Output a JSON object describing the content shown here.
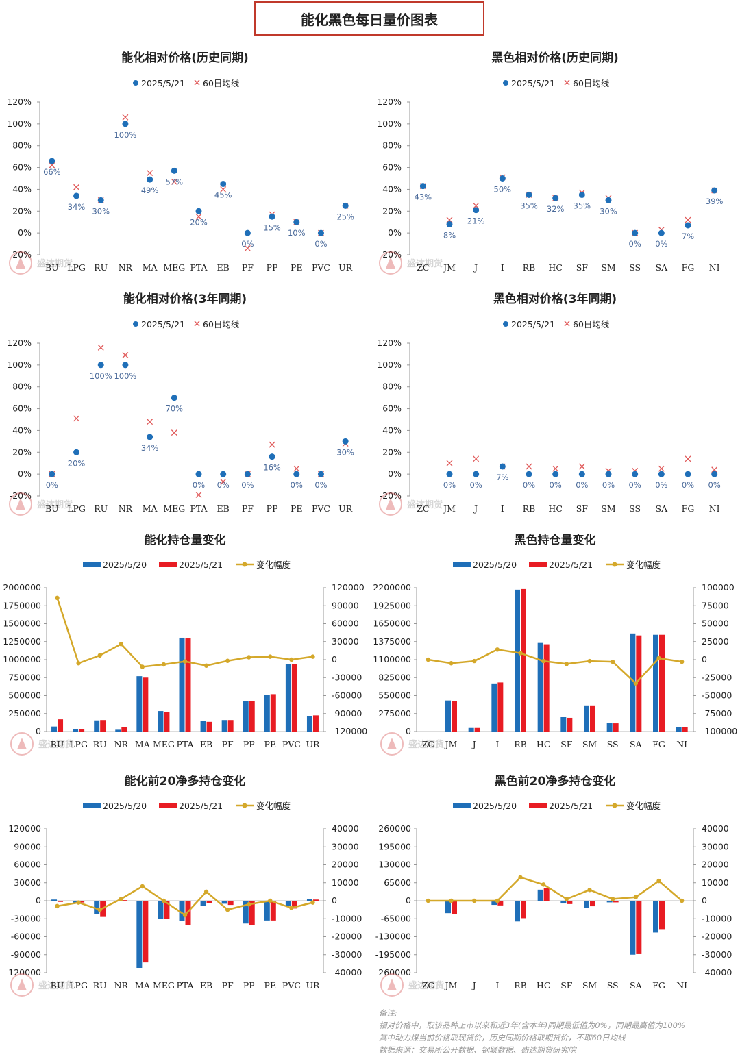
{
  "header": {
    "title": "能化黑色每日量价图表"
  },
  "legend_labels": {
    "dot": "2025/5/21",
    "cross": "60日均线",
    "bar1": "2025/5/20",
    "bar2": "2025/5/21",
    "line": "变化幅度"
  },
  "watermark": {
    "text": "盛达期货"
  },
  "colors": {
    "blue": "#1f6fb8",
    "red": "#e81c23",
    "gold": "#d4a82a",
    "cross": "#e05a5a",
    "label": "#4a6a9a"
  },
  "chart_data": [
    {
      "id": "chem-rel-hist",
      "type": "scatter",
      "title": "能化相对价格(历史同期)",
      "categories": [
        "BU",
        "LPG",
        "RU",
        "NR",
        "MA",
        "MEG",
        "PTA",
        "EB",
        "PF",
        "PP",
        "PE",
        "PVC",
        "UR"
      ],
      "series": [
        {
          "name": "2025/5/21",
          "values": [
            66,
            34,
            30,
            100,
            49,
            57,
            20,
            45,
            0,
            15,
            10,
            0,
            25
          ]
        },
        {
          "name": "60日均线",
          "values": [
            62,
            42,
            30,
            106,
            55,
            47,
            15,
            40,
            -14,
            17,
            10,
            0,
            25
          ]
        }
      ],
      "data_labels": [
        "66%",
        "34%",
        "30%",
        "100%",
        "49%",
        "57%",
        "20%",
        "45%",
        "0%",
        "15%",
        "10%",
        "0%",
        "25%"
      ],
      "y_ticks": [
        "120%",
        "100%",
        "80%",
        "60%",
        "40%",
        "20%",
        "0%",
        "-20%"
      ],
      "ylim": [
        -20,
        120
      ]
    },
    {
      "id": "black-rel-hist",
      "type": "scatter",
      "title": "黑色相对价格(历史同期)",
      "categories": [
        "ZC",
        "JM",
        "J",
        "I",
        "RB",
        "HC",
        "SF",
        "SM",
        "SS",
        "SA",
        "FG",
        "NI"
      ],
      "series": [
        {
          "name": "2025/5/21",
          "values": [
            43,
            8,
            21,
            50,
            35,
            32,
            35,
            30,
            0,
            0,
            7,
            39
          ]
        },
        {
          "name": "60日均线",
          "values": [
            43,
            12,
            25,
            51,
            35,
            32,
            37,
            32,
            0,
            3,
            12,
            39
          ]
        }
      ],
      "data_labels": [
        "43%",
        "8%",
        "21%",
        "50%",
        "35%",
        "32%",
        "35%",
        "30%",
        "0%",
        "0%",
        "7%",
        "39%"
      ],
      "y_ticks": [
        "120%",
        "100%",
        "80%",
        "60%",
        "40%",
        "20%",
        "0%",
        "-20%"
      ],
      "ylim": [
        -20,
        120
      ]
    },
    {
      "id": "chem-rel-3y",
      "type": "scatter",
      "title": "能化相对价格(3年同期)",
      "categories": [
        "BU",
        "LPG",
        "RU",
        "NR",
        "MA",
        "MEG",
        "PTA",
        "EB",
        "PF",
        "PP",
        "PE",
        "PVC",
        "UR"
      ],
      "series": [
        {
          "name": "2025/5/21",
          "values": [
            0,
            20,
            100,
            100,
            34,
            70,
            0,
            0,
            0,
            16,
            0,
            0,
            30
          ]
        },
        {
          "name": "60日均线",
          "values": [
            0,
            51,
            116,
            109,
            48,
            38,
            -19,
            -7,
            0,
            27,
            5,
            0,
            28
          ]
        }
      ],
      "data_labels": [
        "0%",
        "20%",
        "100%",
        "100%",
        "34%",
        "70%",
        "0%",
        "0%",
        "0%",
        "16%",
        "0%",
        "0%",
        "30%"
      ],
      "y_ticks": [
        "120%",
        "100%",
        "80%",
        "60%",
        "40%",
        "20%",
        "0%",
        "-20%"
      ],
      "ylim": [
        -20,
        120
      ]
    },
    {
      "id": "black-rel-3y",
      "type": "scatter",
      "title": "黑色相对价格(3年同期)",
      "categories": [
        "ZC",
        "JM",
        "J",
        "I",
        "RB",
        "HC",
        "SF",
        "SM",
        "SS",
        "SA",
        "FG",
        "NI"
      ],
      "series": [
        {
          "name": "2025/5/21",
          "values": [
            null,
            0,
            0,
            7,
            0,
            0,
            0,
            0,
            0,
            0,
            0,
            0
          ]
        },
        {
          "name": "60日均线",
          "values": [
            null,
            10,
            14,
            7,
            7,
            5,
            7,
            3,
            3,
            5,
            14,
            4
          ]
        }
      ],
      "data_labels": [
        "",
        "0%",
        "0%",
        "7%",
        "0%",
        "0%",
        "0%",
        "0%",
        "0%",
        "0%",
        "0%",
        "0%"
      ],
      "y_ticks": [
        "120%",
        "100%",
        "80%",
        "60%",
        "40%",
        "20%",
        "0%",
        "-20%"
      ],
      "ylim": [
        -20,
        120
      ]
    },
    {
      "id": "chem-oi",
      "type": "bar",
      "title": "能化持仓量变化",
      "categories": [
        "BU",
        "LPG",
        "RU",
        "NR",
        "MA",
        "MEG",
        "PTA",
        "EB",
        "PF",
        "PP",
        "PE",
        "PVC",
        "UR"
      ],
      "series": [
        {
          "name": "2025/5/20",
          "values": [
            70000,
            35000,
            155000,
            25000,
            770000,
            285000,
            1305000,
            150000,
            160000,
            425000,
            510000,
            940000,
            215000
          ]
        },
        {
          "name": "2025/5/21",
          "values": [
            170000,
            30000,
            160000,
            60000,
            750000,
            275000,
            1295000,
            135000,
            160000,
            425000,
            520000,
            940000,
            225000
          ]
        },
        {
          "name": "变化幅度",
          "values": [
            103000,
            -6000,
            7000,
            26000,
            -12000,
            -8000,
            -3000,
            -10000,
            -2000,
            4000,
            5000,
            0,
            5000
          ]
        }
      ],
      "y_ticks": [
        "2000000",
        "1750000",
        "1500000",
        "1250000",
        "1000000",
        "750000",
        "500000",
        "250000",
        "0"
      ],
      "y2_ticks": [
        "120000",
        "90000",
        "60000",
        "30000",
        "0",
        "-30000",
        "-60000",
        "-90000",
        "-120000"
      ],
      "ylim": [
        0,
        2000000
      ],
      "y2lim": [
        -120000,
        120000
      ]
    },
    {
      "id": "black-oi",
      "type": "bar",
      "title": "黑色持仓量变化",
      "categories": [
        "ZC",
        "JM",
        "J",
        "I",
        "RB",
        "HC",
        "SF",
        "SM",
        "SS",
        "SA",
        "FG",
        "NI"
      ],
      "series": [
        {
          "name": "2025/5/20",
          "values": [
            0,
            475000,
            55000,
            735000,
            2170000,
            1355000,
            220000,
            400000,
            130000,
            1500000,
            1480000,
            65000
          ]
        },
        {
          "name": "2025/5/21",
          "values": [
            0,
            470000,
            55000,
            750000,
            2180000,
            1335000,
            210000,
            400000,
            125000,
            1470000,
            1480000,
            65000
          ]
        },
        {
          "name": "变化幅度",
          "values": [
            0,
            -5000,
            -2000,
            14000,
            9000,
            -2000,
            -6000,
            -2000,
            -3000,
            -33000,
            2000,
            -3000
          ]
        }
      ],
      "y_ticks": [
        "2200000",
        "1925000",
        "1650000",
        "1375000",
        "1100000",
        "825000",
        "550000",
        "275000",
        "0"
      ],
      "y2_ticks": [
        "100000",
        "75000",
        "50000",
        "25000",
        "0",
        "-25000",
        "-50000",
        "-75000",
        "-100000"
      ],
      "ylim": [
        0,
        2200000
      ],
      "y2lim": [
        -100000,
        100000
      ]
    },
    {
      "id": "chem-net",
      "type": "bar",
      "title": "能化前20净多持仓变化",
      "categories": [
        "BU",
        "LPG",
        "RU",
        "NR",
        "MA",
        "MEG",
        "PTA",
        "EB",
        "PF",
        "PP",
        "PE",
        "PVC",
        "UR"
      ],
      "series": [
        {
          "name": "2025/5/20",
          "values": [
            2000,
            -3000,
            -22000,
            0,
            -112000,
            -30000,
            -34000,
            -9000,
            -5000,
            -38000,
            -33000,
            -9000,
            3000
          ]
        },
        {
          "name": "2025/5/21",
          "values": [
            -2000,
            -3000,
            -27000,
            1000,
            -103000,
            -30000,
            -41000,
            -4000,
            -7000,
            -40000,
            -33000,
            -13000,
            2000
          ]
        },
        {
          "name": "变化幅度",
          "values": [
            -3000,
            -1000,
            -5000,
            1000,
            8000,
            0,
            -8000,
            5000,
            -5000,
            -2000,
            0,
            -4000,
            -1000
          ]
        }
      ],
      "y_ticks": [
        "120000",
        "90000",
        "60000",
        "30000",
        "0",
        "-30000",
        "-60000",
        "-90000",
        "-120000"
      ],
      "y2_ticks": [
        "40000",
        "30000",
        "20000",
        "10000",
        "0",
        "-10000",
        "-20000",
        "-30000",
        "-40000"
      ],
      "ylim": [
        -120000,
        120000
      ],
      "y2lim": [
        -40000,
        40000
      ]
    },
    {
      "id": "black-net",
      "type": "bar",
      "title": "黑色前20净多持仓变化",
      "categories": [
        "ZC",
        "JM",
        "J",
        "I",
        "RB",
        "HC",
        "SF",
        "SM",
        "SS",
        "SA",
        "FG",
        "NI"
      ],
      "series": [
        {
          "name": "2025/5/20",
          "values": [
            0,
            -45000,
            0,
            -15000,
            -75000,
            40000,
            -10000,
            -25000,
            -6000,
            -195000,
            -115000,
            -2000
          ]
        },
        {
          "name": "2025/5/21",
          "values": [
            0,
            -48000,
            0,
            -17000,
            -63000,
            45000,
            -12000,
            -20000,
            -6000,
            -193000,
            -105000,
            -1000
          ]
        },
        {
          "name": "变化幅度",
          "values": [
            0,
            0,
            0,
            0,
            13000,
            9000,
            1000,
            6000,
            1000,
            2000,
            11000,
            0
          ]
        }
      ],
      "y_ticks": [
        "260000",
        "195000",
        "130000",
        "65000",
        "0",
        "-65000",
        "-130000",
        "-195000",
        "-260000"
      ],
      "y2_ticks": [
        "40000",
        "30000",
        "20000",
        "10000",
        "0",
        "-10000",
        "-20000",
        "-30000",
        "-40000"
      ],
      "ylim": [
        -260000,
        260000
      ],
      "y2lim": [
        -40000,
        40000
      ]
    }
  ],
  "notes": {
    "heading": "备注:",
    "line1": "相对价格中，取该品种上市以来和近3年(含本年)同期最低值为0%，同期最高值为100%",
    "line2": "其中动力煤当前价格取现货价，历史同期价格取期货价，不取60日均线",
    "line3": "数据来源：交易所公开数据、钢联数据、盛达期货研究院"
  }
}
